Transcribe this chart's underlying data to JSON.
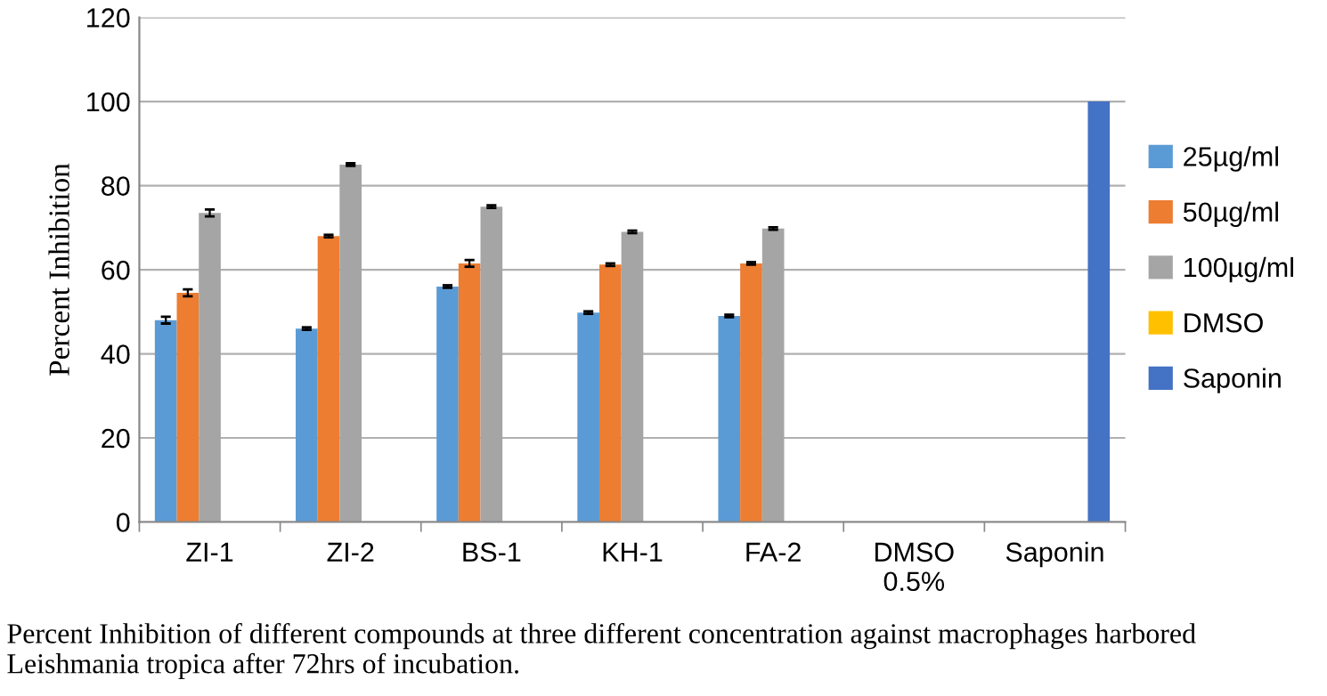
{
  "chart_data": {
    "type": "bar",
    "ylabel": "Percent Inhibition",
    "categories": [
      "ZI-1",
      "ZI-2",
      "BS-1",
      "KH-1",
      "FA-2",
      "DMSO\n0.5%",
      "Saponin"
    ],
    "series": [
      {
        "name": "25µg/ml",
        "color": "#5b9bd5",
        "values": [
          48,
          46,
          56,
          49.8,
          49,
          null,
          null
        ],
        "errors": [
          0.8,
          0.3,
          0.3,
          0.3,
          0.3,
          null,
          null
        ]
      },
      {
        "name": "50µg/ml",
        "color": "#ed7d31",
        "values": [
          54.5,
          68,
          61.5,
          61.2,
          61.5,
          null,
          null
        ],
        "errors": [
          0.8,
          0.3,
          0.8,
          0.3,
          0.3,
          null,
          null
        ]
      },
      {
        "name": "100µg/ml",
        "color": "#a5a5a5",
        "values": [
          73.5,
          85,
          75,
          69,
          69.8,
          null,
          null
        ],
        "errors": [
          0.8,
          0.3,
          0.3,
          0.3,
          0.3,
          null,
          null
        ]
      },
      {
        "name": "DMSO",
        "color": "#ffc000",
        "values": [
          null,
          null,
          null,
          null,
          null,
          0,
          null
        ]
      },
      {
        "name": "Saponin",
        "color": "#4472c4",
        "values": [
          null,
          null,
          null,
          null,
          null,
          null,
          100
        ]
      }
    ],
    "ylim": [
      0,
      120
    ],
    "yticks": [
      0,
      20,
      40,
      60,
      80,
      100,
      120
    ],
    "grid": "y",
    "legend": "right",
    "annotations": [
      "Percent Inhibition of different compounds at three different concentration against macrophages harbored Leishmania tropica after 72hrs of incubation."
    ]
  }
}
